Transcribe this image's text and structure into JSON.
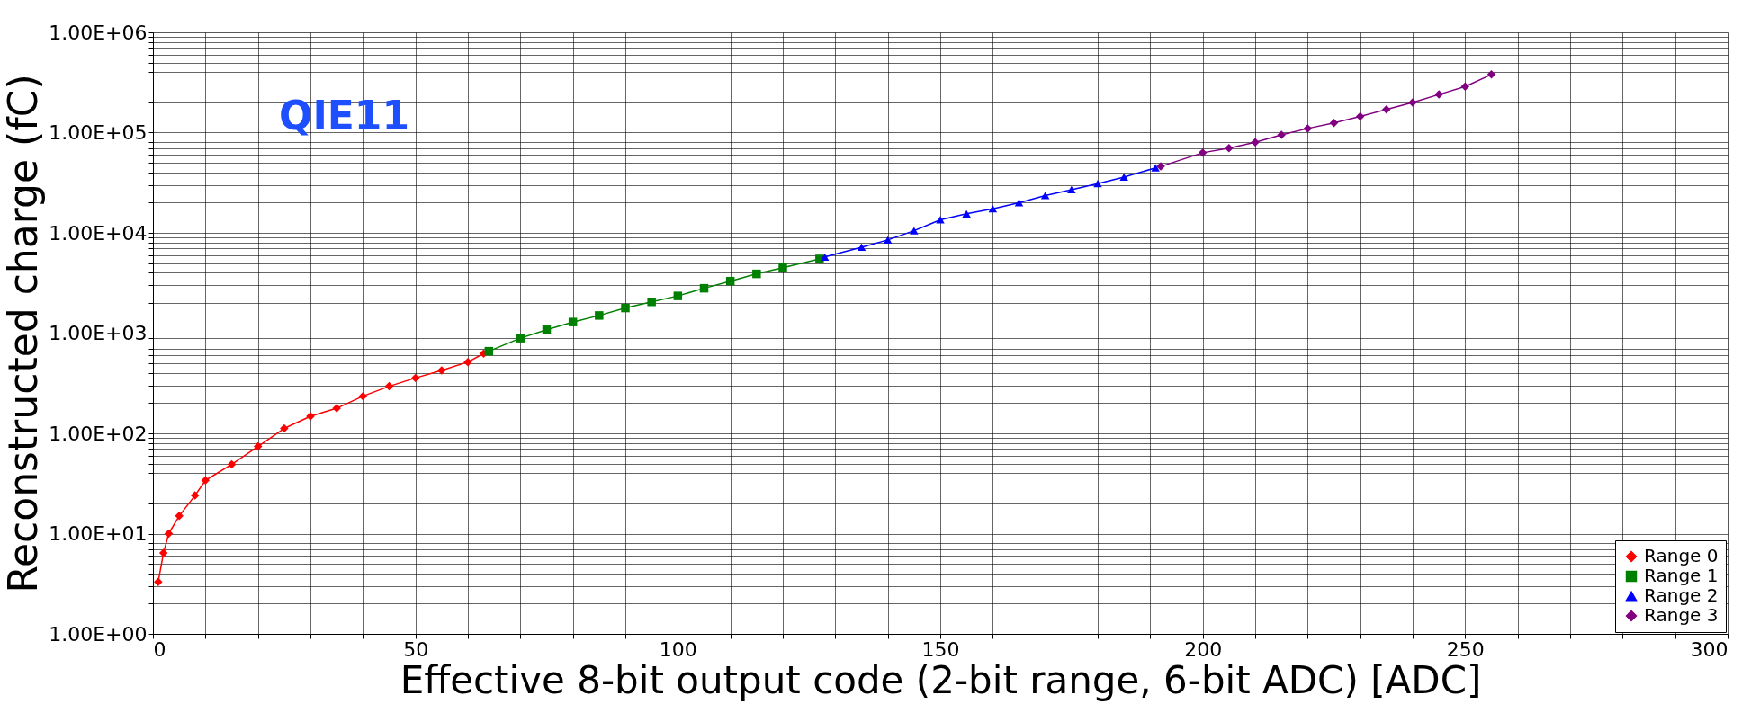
{
  "chart_data": {
    "type": "line",
    "xlabel": "Effective 8-bit output code (2-bit range, 6-bit ADC) [ADC]",
    "ylabel": "Reconstructed charge (fC)",
    "annotations": [
      "QIE11"
    ],
    "log": "y",
    "grid": true,
    "legend": "bottom right",
    "xlim": [
      0,
      300
    ],
    "ylim": [
      1,
      1000000
    ],
    "xticks": [
      0,
      {
        "value": 10,
        "label": null
      },
      {
        "value": 20,
        "label": null
      },
      {
        "value": 30,
        "label": null
      },
      {
        "value": 40,
        "label": null
      },
      50,
      {
        "value": 60,
        "label": null
      },
      {
        "value": 70,
        "label": null
      },
      {
        "value": 80,
        "label": null
      },
      {
        "value": 90,
        "label": null
      },
      100,
      {
        "value": 110,
        "label": null
      },
      {
        "value": 120,
        "label": null
      },
      {
        "value": 130,
        "label": null
      },
      {
        "value": 140,
        "label": null
      },
      150,
      {
        "value": 160,
        "label": null
      },
      {
        "value": 170,
        "label": null
      },
      {
        "value": 180,
        "label": null
      },
      {
        "value": 190,
        "label": null
      },
      200,
      {
        "value": 210,
        "label": null
      },
      {
        "value": 220,
        "label": null
      },
      {
        "value": 230,
        "label": null
      },
      {
        "value": 240,
        "label": null
      },
      250,
      {
        "value": 260,
        "label": null
      },
      {
        "value": 270,
        "label": null
      },
      {
        "value": 280,
        "label": null
      },
      {
        "value": 290,
        "label": null
      },
      300
    ],
    "yticks": [
      {
        "value": 1,
        "label": "1.00E+00"
      },
      {
        "value": 2,
        "label": null
      },
      {
        "value": 3,
        "label": null
      },
      {
        "value": 4,
        "label": null
      },
      {
        "value": 5,
        "label": null
      },
      {
        "value": 6,
        "label": null
      },
      {
        "value": 7,
        "label": null
      },
      {
        "value": 8,
        "label": null
      },
      {
        "value": 9,
        "label": null
      },
      {
        "value": 10,
        "label": "1.00E+01"
      },
      {
        "value": 20,
        "label": null
      },
      {
        "value": 30,
        "label": null
      },
      {
        "value": 40,
        "label": null
      },
      {
        "value": 50,
        "label": null
      },
      {
        "value": 60,
        "label": null
      },
      {
        "value": 70,
        "label": null
      },
      {
        "value": 80,
        "label": null
      },
      {
        "value": 90,
        "label": null
      },
      {
        "value": 100,
        "label": "1.00E+02"
      },
      {
        "value": 200,
        "label": null
      },
      {
        "value": 300,
        "label": null
      },
      {
        "value": 400,
        "label": null
      },
      {
        "value": 500,
        "label": null
      },
      {
        "value": 600,
        "label": null
      },
      {
        "value": 700,
        "label": null
      },
      {
        "value": 800,
        "label": null
      },
      {
        "value": 900,
        "label": null
      },
      {
        "value": 1000,
        "label": "1.00E+03"
      },
      {
        "value": 2000,
        "label": null
      },
      {
        "value": 3000,
        "label": null
      },
      {
        "value": 4000,
        "label": null
      },
      {
        "value": 5000,
        "label": null
      },
      {
        "value": 6000,
        "label": null
      },
      {
        "value": 7000,
        "label": null
      },
      {
        "value": 8000,
        "label": null
      },
      {
        "value": 9000,
        "label": null
      },
      {
        "value": 10000,
        "label": "1.00E+04"
      },
      {
        "value": 20000,
        "label": null
      },
      {
        "value": 30000,
        "label": null
      },
      {
        "value": 40000,
        "label": null
      },
      {
        "value": 50000,
        "label": null
      },
      {
        "value": 60000,
        "label": null
      },
      {
        "value": 70000,
        "label": null
      },
      {
        "value": 80000,
        "label": null
      },
      {
        "value": 90000,
        "label": null
      },
      {
        "value": 100000,
        "label": "1.00E+05"
      },
      {
        "value": 200000,
        "label": null
      },
      {
        "value": 300000,
        "label": null
      },
      {
        "value": 400000,
        "label": null
      },
      {
        "value": 500000,
        "label": null
      },
      {
        "value": 600000,
        "label": null
      },
      {
        "value": 700000,
        "label": null
      },
      {
        "value": 800000,
        "label": null
      },
      {
        "value": 900000,
        "label": null
      },
      {
        "value": 1000000,
        "label": "1.00E+06"
      }
    ],
    "series": [
      {
        "name": "Range 0",
        "color": "#ff0000",
        "marker": "diamond",
        "x": [
          1,
          2,
          3,
          5,
          8,
          10,
          15,
          20,
          25,
          30,
          35,
          40,
          45,
          50,
          55,
          60,
          63
        ],
        "values": [
          3.3,
          6.4,
          10,
          15,
          24,
          34,
          49,
          74,
          112,
          148,
          178,
          235,
          295,
          357,
          425,
          515,
          625
        ]
      },
      {
        "name": "Range 1",
        "color": "#008000",
        "marker": "square",
        "x": [
          64,
          70,
          75,
          80,
          85,
          90,
          95,
          100,
          105,
          110,
          115,
          120,
          127
        ],
        "values": [
          660,
          890,
          1080,
          1290,
          1500,
          1780,
          2050,
          2350,
          2800,
          3300,
          3900,
          4500,
          5500
        ]
      },
      {
        "name": "Range 2",
        "color": "#0000ff",
        "marker": "triangle",
        "x": [
          128,
          135,
          140,
          145,
          150,
          155,
          160,
          165,
          170,
          175,
          180,
          185,
          191
        ],
        "values": [
          5750,
          7200,
          8500,
          10500,
          13500,
          15500,
          17400,
          20000,
          23600,
          27000,
          31000,
          36000,
          44500
        ]
      },
      {
        "name": "Range 3",
        "color": "#800080",
        "marker": "diamond",
        "x": [
          192,
          200,
          205,
          210,
          215,
          220,
          225,
          230,
          235,
          240,
          245,
          250,
          255
        ],
        "values": [
          46000,
          63000,
          70000,
          80000,
          95000,
          110000,
          125000,
          145000,
          170000,
          200000,
          240000,
          288000,
          380000
        ]
      }
    ]
  }
}
